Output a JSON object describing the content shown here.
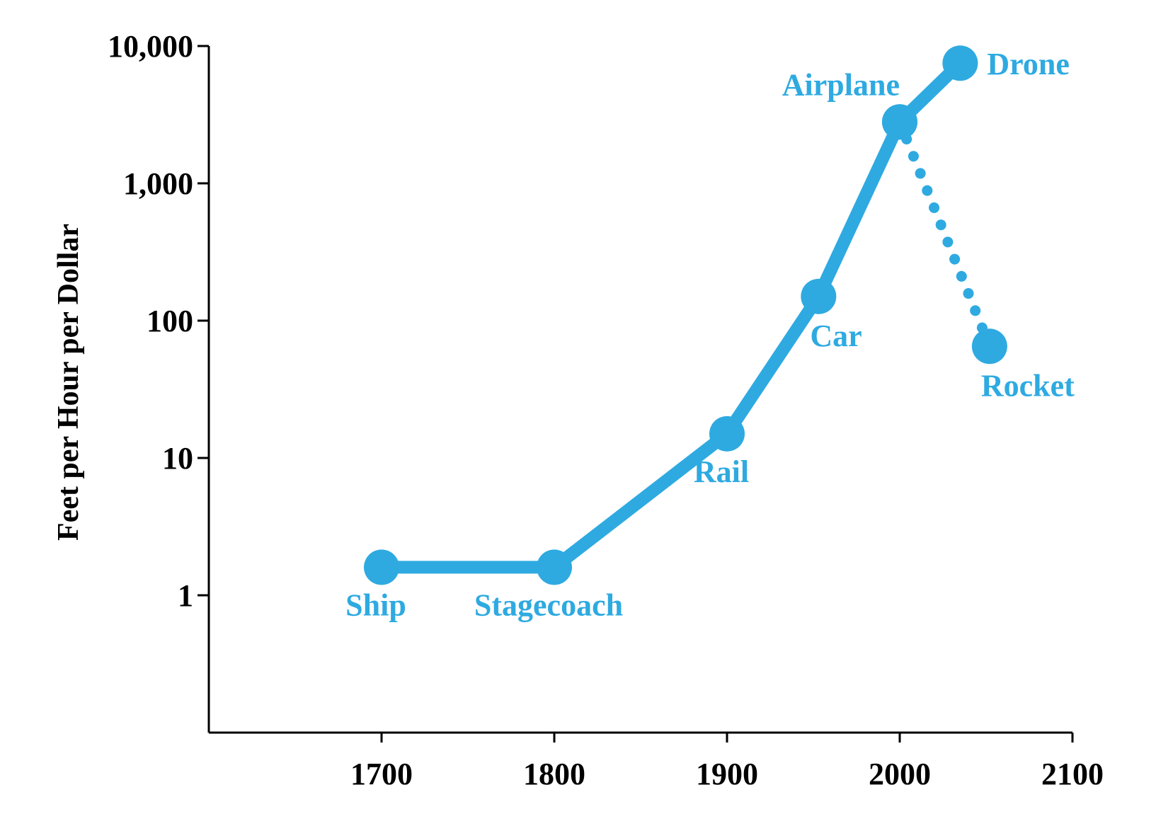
{
  "chart_data": {
    "type": "line",
    "title": "",
    "xlabel": "",
    "ylabel": "Feet per Hour per Dollar",
    "yscale": "log",
    "xlim": [
      1600,
      2100
    ],
    "ylim": [
      0.1,
      10000
    ],
    "grid": false,
    "x_ticks": [
      1700,
      1800,
      1900,
      2000,
      2100
    ],
    "x_tick_labels": [
      "1700",
      "1800",
      "1900",
      "2000",
      "2100"
    ],
    "y_ticks": [
      1,
      10,
      100,
      1000,
      10000
    ],
    "y_tick_labels": [
      "1",
      "10",
      "100",
      "1,000",
      "10,000"
    ],
    "color": "#2eaae1",
    "series": [
      {
        "name": "main",
        "style": "solid",
        "points": [
          {
            "label": "Ship",
            "x": 1700,
            "y": 1.6,
            "label_pos": "below"
          },
          {
            "label": "Stagecoach",
            "x": 1800,
            "y": 1.6,
            "label_pos": "below"
          },
          {
            "label": "Rail",
            "x": 1900,
            "y": 15,
            "label_pos": "below"
          },
          {
            "label": "Car",
            "x": 1953,
            "y": 150,
            "label_pos": "below-right"
          },
          {
            "label": "Airplane",
            "x": 2000,
            "y": 2800,
            "label_pos": "above-left"
          },
          {
            "label": "Drone",
            "x": 2035,
            "y": 7500,
            "label_pos": "right"
          }
        ]
      },
      {
        "name": "rocket",
        "style": "dotted",
        "points": [
          {
            "label": "",
            "x": 2000,
            "y": 2800,
            "label_pos": "none"
          },
          {
            "label": "Rocket",
            "x": 2052,
            "y": 65,
            "label_pos": "below-right"
          }
        ]
      }
    ]
  }
}
